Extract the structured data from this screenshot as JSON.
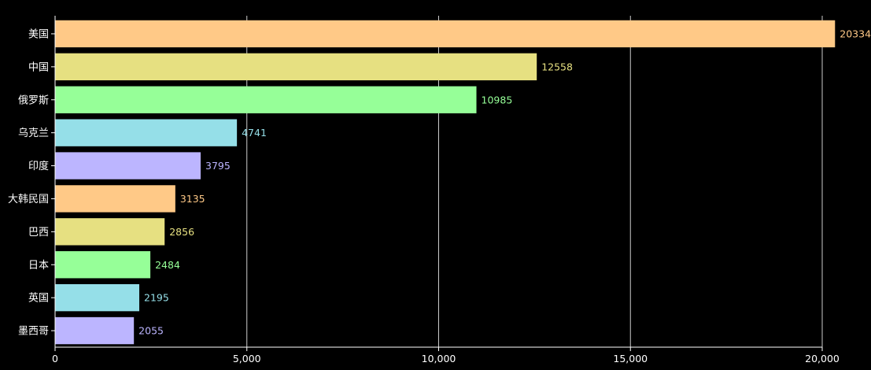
{
  "chart_data": {
    "type": "bar",
    "orientation": "horizontal",
    "categories": [
      "美国",
      "中国",
      "俄罗斯",
      "乌克兰",
      "印度",
      "大韩民国",
      "巴西",
      "日本",
      "英国",
      "墨西哥"
    ],
    "values": [
      20334,
      12558,
      10985,
      4741,
      3795,
      3135,
      2856,
      2484,
      2195,
      2055
    ],
    "value_labels": [
      "20334",
      "12558",
      "10985",
      "4741",
      "3795",
      "3135",
      "2856",
      "2484",
      "2195",
      "2055"
    ],
    "xlim": [
      0,
      20000
    ],
    "x_ticks": [
      0,
      5000,
      10000,
      15000,
      20000
    ],
    "x_tick_labels": [
      "0",
      "5,000",
      "10,000",
      "15,000",
      "20,000"
    ],
    "grid": "vertical",
    "title": "",
    "xlabel": "",
    "ylabel": ""
  },
  "colors": {
    "background": "#000000",
    "axis": "#ffffff",
    "grid": "#cccccc",
    "bar_palette": [
      "#ffc987",
      "#e6e081",
      "#96ff98",
      "#95dfe8",
      "#bcb5ff"
    ]
  }
}
